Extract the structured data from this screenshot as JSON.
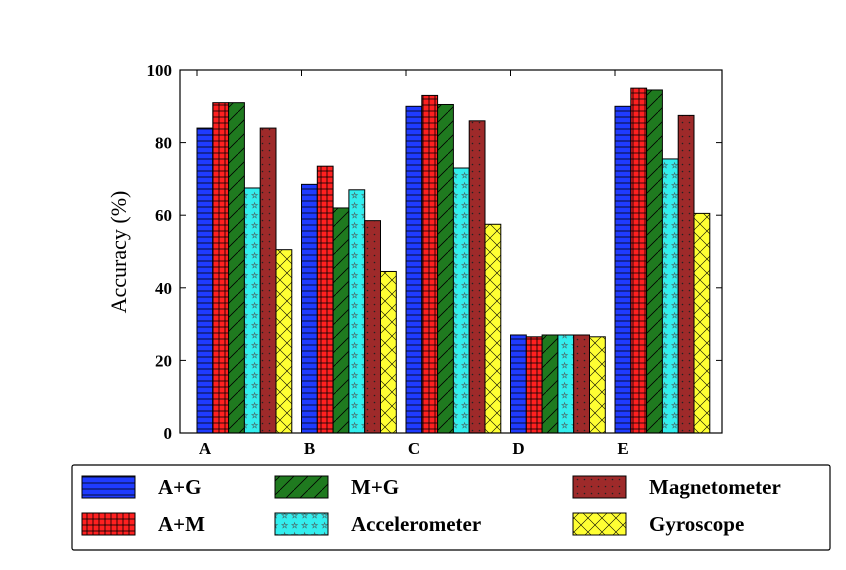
{
  "chart_data": {
    "type": "bar",
    "categories": [
      "A",
      "B",
      "C",
      "D",
      "E"
    ],
    "ylabel": "Accuracy (%)",
    "xlabel": "",
    "ylim": [
      0,
      100
    ],
    "yticks": [
      0,
      20,
      40,
      60,
      80,
      100
    ],
    "grid": false,
    "legend_position": "bottom",
    "series": [
      {
        "name": "A+G",
        "color": "#1f3bff",
        "pattern": "horizontal-lines",
        "values": [
          84,
          68.5,
          90,
          27,
          90
        ]
      },
      {
        "name": "A+M",
        "color": "#ff2020",
        "pattern": "grid",
        "values": [
          91,
          73.5,
          93,
          26.5,
          95
        ]
      },
      {
        "name": "M+G",
        "color": "#1f7a1f",
        "pattern": "diagonal",
        "values": [
          91,
          62,
          90.5,
          27,
          94.5
        ]
      },
      {
        "name": "Accelerometer",
        "color": "#33eeee",
        "pattern": "stars",
        "values": [
          67.5,
          67,
          73,
          27,
          75.5
        ]
      },
      {
        "name": "Magnetometer",
        "color": "#9e2a2a",
        "pattern": "dots",
        "values": [
          84,
          58.5,
          86,
          27,
          87.5
        ]
      },
      {
        "name": "Gyroscope",
        "color": "#ffff33",
        "pattern": "crosshatch",
        "values": [
          50.5,
          44.5,
          57.5,
          26.5,
          60.5
        ]
      }
    ]
  }
}
